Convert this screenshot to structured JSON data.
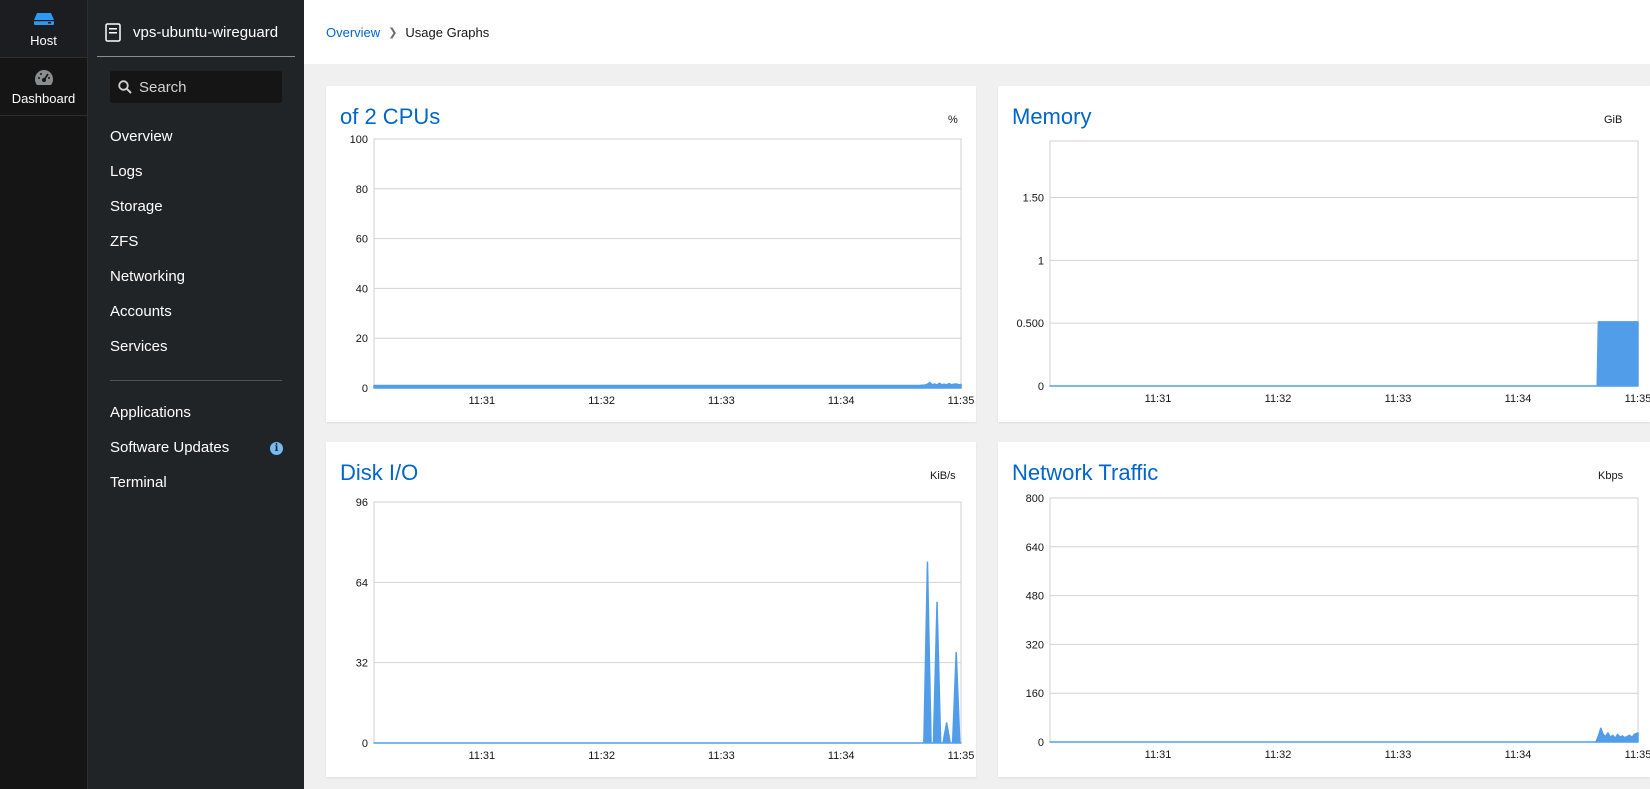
{
  "rail": {
    "host_label": "Host",
    "dashboard_label": "Dashboard"
  },
  "nav": {
    "host_name": "vps-ubuntu-wireguard",
    "search_placeholder": "Search",
    "items": [
      "Overview",
      "Logs",
      "Storage",
      "ZFS",
      "Networking",
      "Accounts",
      "Services"
    ],
    "items2": [
      "Applications",
      "Software Updates",
      "Terminal"
    ]
  },
  "breadcrumb": {
    "parent": "Overview",
    "current": "Usage Graphs"
  },
  "colors": {
    "accent": "#0066cc",
    "series": "#519de9"
  },
  "chart_data": [
    {
      "type": "area",
      "title": "of 2 CPUs",
      "unit": "%",
      "ylim": [
        0,
        100
      ],
      "yticks": [
        "0",
        "20",
        "40",
        "60",
        "80",
        "100"
      ],
      "xlim": [
        30.1,
        35.0
      ],
      "xticks": [
        "11:31",
        "11:32",
        "11:33",
        "11:34",
        "11:35"
      ],
      "x": [
        30.1,
        34.65,
        34.7,
        34.72,
        34.74,
        34.76,
        34.78,
        34.8,
        34.82,
        34.84,
        34.86,
        34.88,
        34.9,
        34.92,
        34.94,
        34.96,
        34.98,
        35.0
      ],
      "y": [
        1,
        1,
        1.2,
        1.5,
        2.2,
        1.3,
        1.6,
        1.2,
        1.9,
        1.3,
        1.5,
        1.2,
        1.8,
        1.3,
        1.5,
        1.6,
        1.3,
        1.4
      ],
      "grid": true
    },
    {
      "type": "area",
      "title": "Memory",
      "unit": "GiB",
      "ylim": [
        0,
        1.95
      ],
      "yticks": [
        "0",
        "0.500",
        "1",
        "1.50"
      ],
      "xlim": [
        30.1,
        35.0
      ],
      "xticks": [
        "11:31",
        "11:32",
        "11:33",
        "11:34",
        "11:35"
      ],
      "x": [
        30.1,
        34.66,
        34.67,
        35.0
      ],
      "y": [
        0,
        0,
        0.51,
        0.51
      ],
      "grid": true
    },
    {
      "type": "area",
      "title": "Disk I/O",
      "unit": "KiB/s",
      "ylim": [
        0,
        96
      ],
      "yticks": [
        "0",
        "32",
        "64",
        "96"
      ],
      "xlim": [
        30.1,
        35.0
      ],
      "xticks": [
        "11:31",
        "11:32",
        "11:33",
        "11:34",
        "11:35"
      ],
      "x": [
        30.1,
        34.69,
        34.72,
        34.75,
        34.77,
        34.8,
        34.83,
        34.85,
        34.88,
        34.91,
        34.93,
        34.96,
        34.99,
        35.0
      ],
      "y": [
        0,
        0,
        72,
        0,
        0,
        56,
        0,
        0,
        8,
        0,
        0,
        36,
        0,
        0
      ],
      "grid": true
    },
    {
      "type": "area",
      "title": "Network Traffic",
      "unit": "Kbps",
      "ylim": [
        0,
        800
      ],
      "yticks": [
        "0",
        "160",
        "320",
        "480",
        "640",
        "800"
      ],
      "xlim": [
        30.1,
        35.0
      ],
      "xticks": [
        "11:31",
        "11:32",
        "11:33",
        "11:34",
        "11:35"
      ],
      "x": [
        30.1,
        34.65,
        34.67,
        34.69,
        34.71,
        34.73,
        34.75,
        34.77,
        34.79,
        34.81,
        34.83,
        34.85,
        34.87,
        34.89,
        34.91,
        34.93,
        34.95,
        34.97,
        35.0
      ],
      "y": [
        0,
        0,
        20,
        45,
        25,
        18,
        30,
        15,
        22,
        12,
        25,
        16,
        20,
        14,
        18,
        22,
        15,
        25,
        30
      ],
      "grid": true
    }
  ]
}
